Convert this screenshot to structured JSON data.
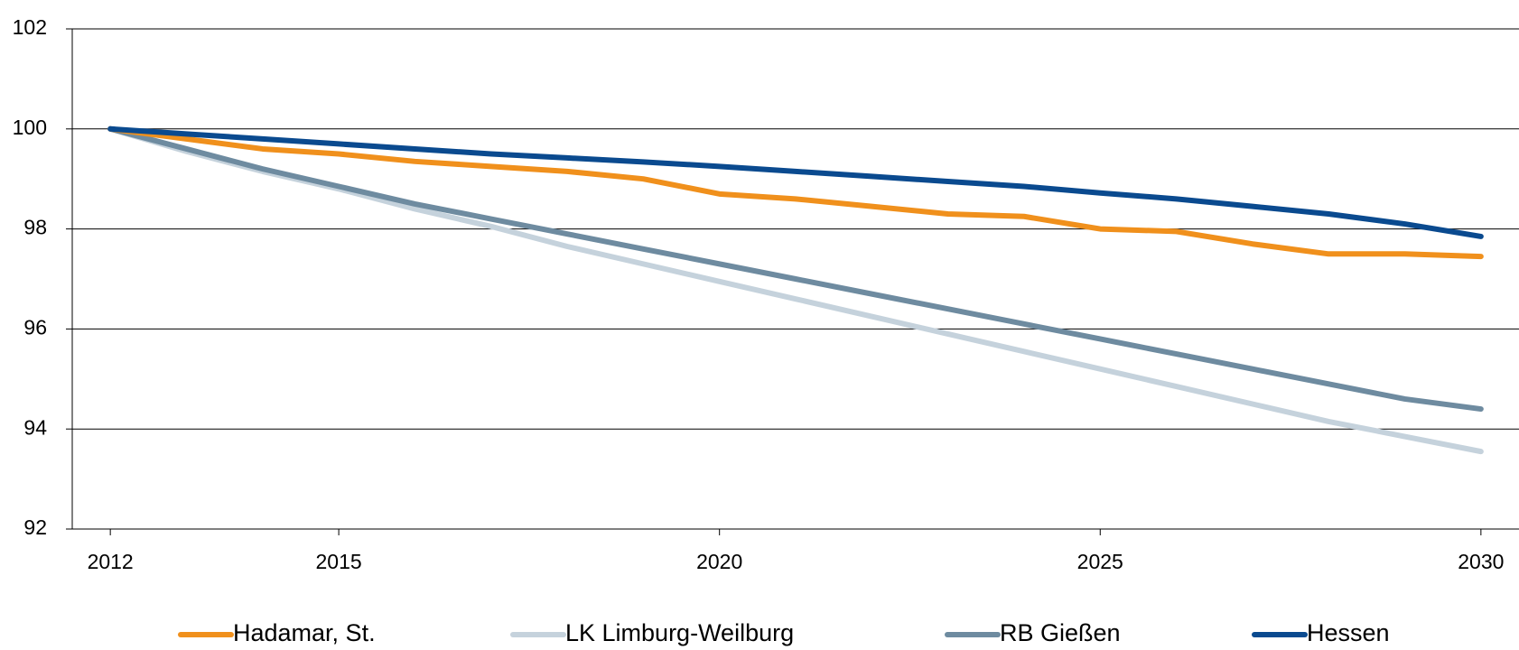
{
  "chart_data": {
    "type": "line",
    "x": [
      2012,
      2013,
      2014,
      2015,
      2016,
      2017,
      2018,
      2019,
      2020,
      2021,
      2022,
      2023,
      2024,
      2025,
      2026,
      2027,
      2028,
      2029,
      2030
    ],
    "series": [
      {
        "name": "Hadamar, St.",
        "color": "#f0901c",
        "values": [
          100,
          99.8,
          99.6,
          99.5,
          99.35,
          99.25,
          99.15,
          99.0,
          98.7,
          98.6,
          98.45,
          98.3,
          98.25,
          98.0,
          97.95,
          97.7,
          97.5,
          97.5,
          97.45
        ]
      },
      {
        "name": "LK Limburg-Weilburg",
        "color": "#c5d2dc",
        "values": [
          100,
          99.55,
          99.15,
          98.8,
          98.4,
          98.05,
          97.65,
          97.3,
          96.95,
          96.6,
          96.25,
          95.9,
          95.55,
          95.2,
          94.85,
          94.5,
          94.15,
          93.85,
          93.55
        ]
      },
      {
        "name": "RB Gießen",
        "color": "#6e8ba0",
        "values": [
          100,
          99.6,
          99.2,
          98.85,
          98.5,
          98.2,
          97.9,
          97.6,
          97.3,
          97.0,
          96.7,
          96.4,
          96.1,
          95.8,
          95.5,
          95.2,
          94.9,
          94.6,
          94.4
        ]
      },
      {
        "name": "Hessen",
        "color": "#0a4a8f",
        "values": [
          100,
          99.9,
          99.8,
          99.7,
          99.6,
          99.5,
          99.42,
          99.34,
          99.25,
          99.15,
          99.05,
          98.95,
          98.85,
          98.72,
          98.6,
          98.45,
          98.3,
          98.1,
          97.85
        ]
      }
    ],
    "xlim": [
      2011.5,
      2030.5
    ],
    "xticks": [
      2012,
      2015,
      2020,
      2025,
      2030
    ],
    "ylim": [
      92,
      102
    ],
    "yticks": [
      92,
      94,
      96,
      98,
      100,
      102
    ],
    "grid": true
  }
}
